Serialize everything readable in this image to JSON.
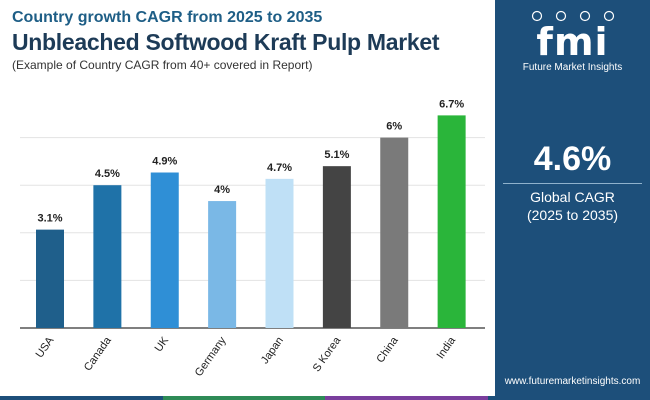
{
  "header": {
    "subtitle": "Country growth CAGR from 2025 to 2035",
    "title": "Unbleached Softwood Kraft Pulp Market",
    "caption": "(Example of Country CAGR from 40+ covered in Report)"
  },
  "panel": {
    "logo_text": "fmi",
    "logo_tagline": "Future Market Insights",
    "global_value": "4.6%",
    "global_label": "Global CAGR",
    "global_range": "(2025 to 2035)",
    "website": "www.futuremarketinsights.com"
  },
  "colors": {
    "panel_bg": "#1d4f7a",
    "strip": [
      "#1d4f7a",
      "#2e8b57",
      "#7a3e9d",
      "#1d4f7a"
    ]
  },
  "chart_data": {
    "type": "bar",
    "categories": [
      "USA",
      "Canada",
      "UK",
      "Germany",
      "Japan",
      "S Korea",
      "China",
      "India"
    ],
    "values": [
      3.1,
      4.5,
      4.9,
      4.0,
      4.7,
      5.1,
      6.0,
      6.7
    ],
    "value_labels": [
      "3.1%",
      "4.5%",
      "4.9%",
      "4%",
      "4.7%",
      "5.1%",
      "6%",
      "6.7%"
    ],
    "colors": [
      "#1f5f8b",
      "#1f72a8",
      "#2f8fd6",
      "#7ab8e6",
      "#bfe0f6",
      "#444444",
      "#7a7a7a",
      "#2ab53a"
    ],
    "ylim": [
      0,
      7.5
    ],
    "grid": true
  }
}
